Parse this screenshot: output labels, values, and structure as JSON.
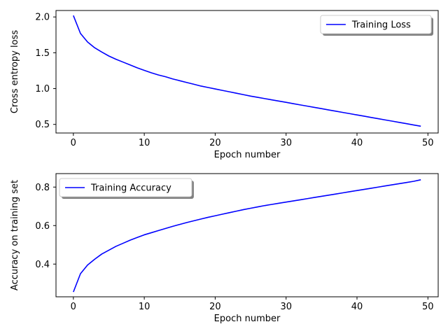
{
  "chart_data": [
    {
      "type": "line",
      "title": "",
      "xlabel": "Epoch number",
      "ylabel": "Cross entropy loss",
      "xlim": [
        -2.45,
        51.45
      ],
      "ylim": [
        0.38,
        2.09
      ],
      "xticks": [
        0,
        10,
        20,
        30,
        40,
        50
      ],
      "yticks": [
        0.5,
        1.0,
        1.5,
        2.0
      ],
      "ytick_labels": [
        "0.5",
        "1.0",
        "1.5",
        "2.0"
      ],
      "grid": false,
      "legend_position": "top-right",
      "series": [
        {
          "name": "Training Loss",
          "color": "#0000ff",
          "x": [
            0,
            1,
            2,
            3,
            4,
            5,
            6,
            7,
            8,
            9,
            10,
            11,
            12,
            13,
            14,
            15,
            16,
            17,
            18,
            19,
            20,
            21,
            22,
            23,
            24,
            25,
            26,
            27,
            28,
            29,
            30,
            31,
            32,
            33,
            34,
            35,
            36,
            37,
            38,
            39,
            40,
            41,
            42,
            43,
            44,
            45,
            46,
            47,
            48,
            49
          ],
          "y": [
            2.02,
            1.77,
            1.65,
            1.57,
            1.51,
            1.455,
            1.41,
            1.37,
            1.33,
            1.29,
            1.255,
            1.22,
            1.19,
            1.165,
            1.135,
            1.11,
            1.085,
            1.06,
            1.035,
            1.015,
            0.995,
            0.975,
            0.955,
            0.935,
            0.915,
            0.895,
            0.878,
            0.86,
            0.842,
            0.825,
            0.808,
            0.79,
            0.772,
            0.755,
            0.737,
            0.72,
            0.702,
            0.685,
            0.667,
            0.65,
            0.632,
            0.615,
            0.597,
            0.58,
            0.562,
            0.545,
            0.527,
            0.51,
            0.492,
            0.475
          ]
        }
      ]
    },
    {
      "type": "line",
      "title": "",
      "xlabel": "Epoch number",
      "ylabel": "Accuracy on training set",
      "xlim": [
        -2.45,
        51.45
      ],
      "ylim": [
        0.23,
        0.87
      ],
      "xticks": [
        0,
        10,
        20,
        30,
        40,
        50
      ],
      "yticks": [
        0.4,
        0.6,
        0.8
      ],
      "ytick_labels": [
        "0.4",
        "0.6",
        "0.8"
      ],
      "grid": false,
      "legend_position": "top-left",
      "series": [
        {
          "name": "Training Accuracy",
          "color": "#0000ff",
          "x": [
            0,
            1,
            2,
            3,
            4,
            5,
            6,
            7,
            8,
            9,
            10,
            11,
            12,
            13,
            14,
            15,
            16,
            17,
            18,
            19,
            20,
            21,
            22,
            23,
            24,
            25,
            26,
            27,
            28,
            29,
            30,
            31,
            32,
            33,
            34,
            35,
            36,
            37,
            38,
            39,
            40,
            41,
            42,
            43,
            44,
            45,
            46,
            47,
            48,
            49
          ],
          "y": [
            0.255,
            0.35,
            0.395,
            0.425,
            0.452,
            0.472,
            0.492,
            0.508,
            0.524,
            0.538,
            0.552,
            0.563,
            0.574,
            0.585,
            0.596,
            0.606,
            0.616,
            0.625,
            0.634,
            0.643,
            0.651,
            0.659,
            0.667,
            0.675,
            0.683,
            0.69,
            0.697,
            0.704,
            0.71,
            0.716,
            0.722,
            0.728,
            0.734,
            0.74,
            0.746,
            0.752,
            0.758,
            0.764,
            0.77,
            0.776,
            0.782,
            0.788,
            0.794,
            0.8,
            0.806,
            0.812,
            0.818,
            0.824,
            0.83,
            0.838
          ]
        }
      ]
    }
  ]
}
